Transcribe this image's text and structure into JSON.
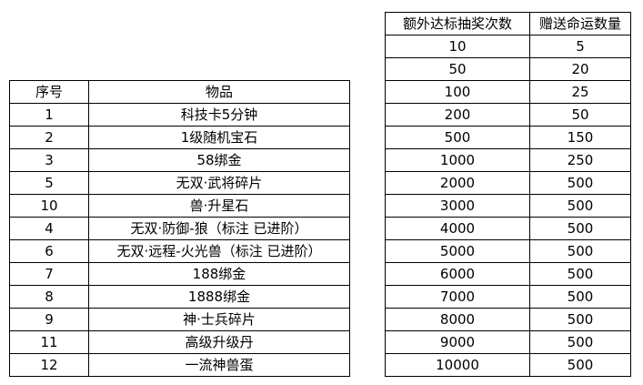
{
  "items_table": {
    "headers": [
      "序号",
      "物品"
    ],
    "rows": [
      [
        "1",
        "科技卡5分钟"
      ],
      [
        "2",
        "1级随机宝石"
      ],
      [
        "3",
        "58绑金"
      ],
      [
        "5",
        "无双·武将碎片"
      ],
      [
        "10",
        "兽·升星石"
      ],
      [
        "4",
        "无双·防御-狼（标注 已进阶）"
      ],
      [
        "6",
        "无双·远程-火光兽（标注  已进阶）"
      ],
      [
        "7",
        "188绑金"
      ],
      [
        "8",
        "1888绑金"
      ],
      [
        "9",
        "神·士兵碎片"
      ],
      [
        "11",
        "高级升级丹"
      ],
      [
        "12",
        "一流神兽蛋"
      ]
    ]
  },
  "reward_table": {
    "headers": [
      "额外达标抽奖次数",
      "赠送命运数量"
    ],
    "rows": [
      [
        "10",
        "5"
      ],
      [
        "50",
        "20"
      ],
      [
        "100",
        "25"
      ],
      [
        "200",
        "50"
      ],
      [
        "500",
        "150"
      ],
      [
        "1000",
        "250"
      ],
      [
        "2000",
        "500"
      ],
      [
        "3000",
        "500"
      ],
      [
        "4000",
        "500"
      ],
      [
        "5000",
        "500"
      ],
      [
        "6000",
        "500"
      ],
      [
        "7000",
        "500"
      ],
      [
        "8000",
        "500"
      ],
      [
        "9000",
        "500"
      ],
      [
        "10000",
        "500"
      ]
    ]
  }
}
